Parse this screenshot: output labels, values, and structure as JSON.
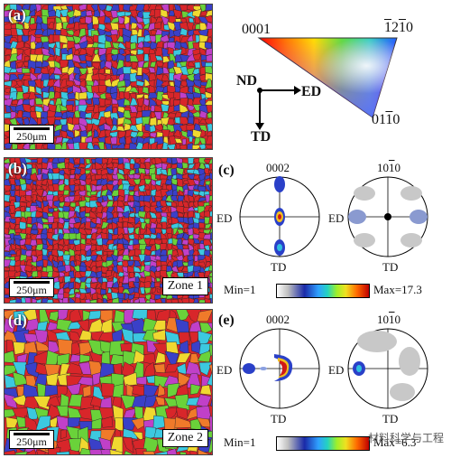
{
  "panels": {
    "a": {
      "label": "(a)",
      "scale": "250μm"
    },
    "b": {
      "label": "(b)",
      "scale": "250μm",
      "zone": "Zone 1"
    },
    "d": {
      "label": "(d)",
      "scale": "250μm",
      "zone": "Zone 2"
    }
  },
  "ipf_key": {
    "corner_0001": "0001",
    "corner_1210_plain": "12",
    "corner_1210_bar1": "1",
    "corner_1210_mid": "2",
    "corner_1210_bar2": "1",
    "corner_1210_end": "0",
    "corner_0110_pre": "01",
    "corner_0110_bar": "1",
    "corner_0110_end": "0",
    "axis_nd": "ND",
    "axis_ed": "ED",
    "axis_td": "TD"
  },
  "pole_figures_c": {
    "label": "(c)",
    "left_title": "0002",
    "right_title_pre": "10",
    "right_title_bar": "1",
    "right_title_end": "0",
    "ed": "ED",
    "td": "TD",
    "min": "Min=1",
    "max": "Max=17.3"
  },
  "pole_figures_e": {
    "label": "(e)",
    "left_title": "0002",
    "right_title_pre": "10",
    "right_title_bar": "1",
    "right_title_end": "0",
    "ed": "ED",
    "td": "TD",
    "min": "Min=1",
    "max": "Max=6.3"
  },
  "watermark": "材料科学与工程",
  "colors": {
    "red": "#d8262a",
    "blue": "#3a40c8",
    "green": "#6ad23a",
    "cyan": "#3cc8e0",
    "yellow": "#f0d830",
    "magenta": "#c040c8",
    "orange": "#f07a2a"
  }
}
